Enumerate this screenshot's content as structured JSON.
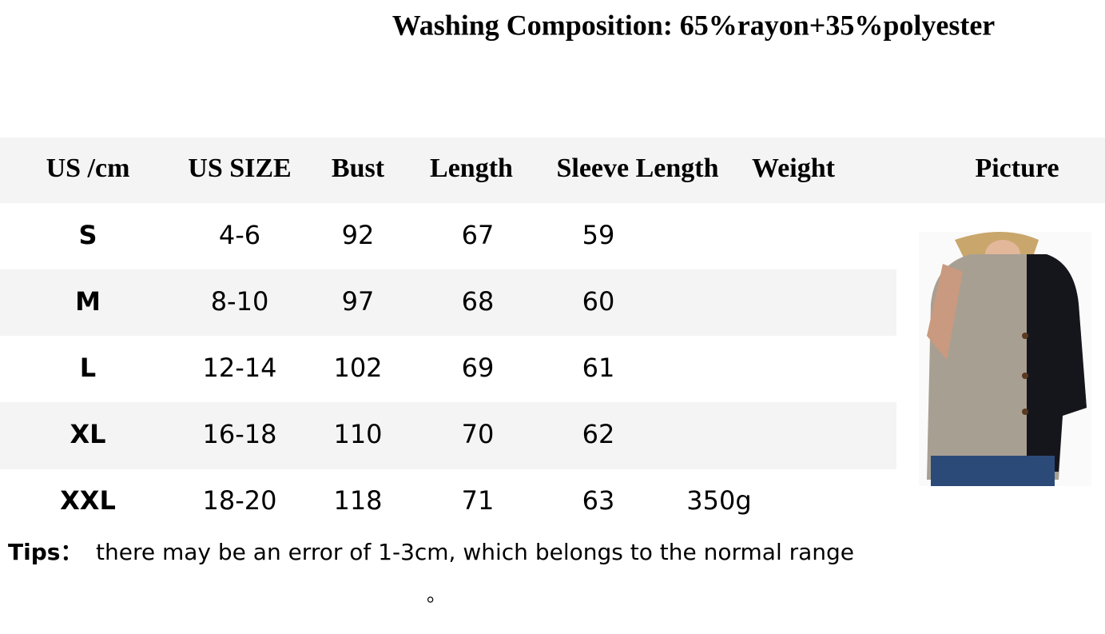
{
  "header": {
    "title": "Washing Composition:  65%rayon+35%polyester"
  },
  "table": {
    "columns": [
      "US /cm",
      "US SIZE",
      "Bust",
      "Length",
      "Sleeve Length",
      "Weight",
      "Picture"
    ],
    "rows": [
      [
        "S",
        "4-6",
        "92",
        "67",
        "59"
      ],
      [
        "M",
        "8-10",
        "97",
        "68",
        "60"
      ],
      [
        "L",
        "12-14",
        "102",
        "69",
        "61"
      ],
      [
        "XL",
        "16-18",
        "110",
        "70",
        "62"
      ],
      [
        "XXL",
        "18-20",
        "118",
        "71",
        "63",
        "350g"
      ]
    ]
  },
  "tips": {
    "label": "Tips：",
    "text": "there may be an error of 1-3cm, which belongs to the normal range",
    "mark": "。"
  }
}
